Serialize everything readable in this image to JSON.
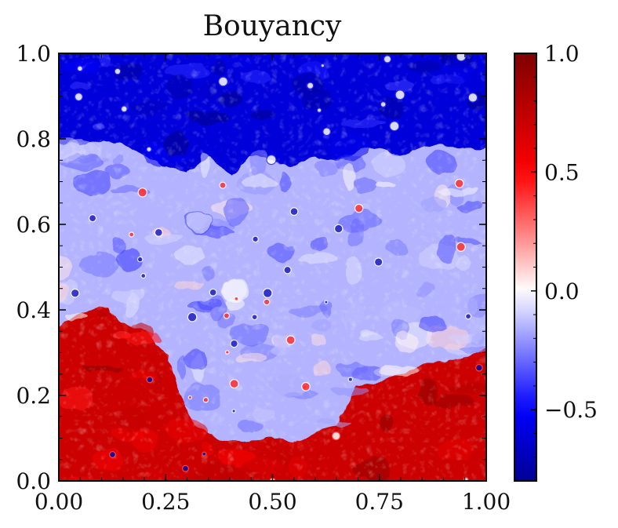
{
  "chart_data": {
    "type": "heatmap",
    "title": "Bouyancy",
    "xlabel": "",
    "ylabel": "",
    "xlim": [
      0.0,
      1.0
    ],
    "ylim": [
      0.0,
      1.0
    ],
    "x_ticks": [
      {
        "value": 0.0,
        "label": "0.00"
      },
      {
        "value": 0.25,
        "label": "0.25"
      },
      {
        "value": 0.5,
        "label": "0.50"
      },
      {
        "value": 0.75,
        "label": "0.75"
      },
      {
        "value": 1.0,
        "label": "1.00"
      }
    ],
    "y_ticks": [
      {
        "value": 0.0,
        "label": "0.0"
      },
      {
        "value": 0.2,
        "label": "0.2"
      },
      {
        "value": 0.4,
        "label": "0.4"
      },
      {
        "value": 0.6,
        "label": "0.6"
      },
      {
        "value": 0.8,
        "label": "0.8"
      },
      {
        "value": 1.0,
        "label": "1.0"
      }
    ],
    "colorbar": {
      "range": [
        -0.8,
        1.0
      ],
      "ticks": [
        {
          "value": 1.0,
          "label": "1.0"
        },
        {
          "value": 0.5,
          "label": "0.5"
        },
        {
          "value": 0.0,
          "label": "0.0"
        },
        {
          "value": -0.5,
          "label": "−0.5"
        }
      ],
      "colormap": "seismic",
      "colors": {
        "low": "#00004c",
        "mid_low": "#0000ff",
        "center": "#ffffff",
        "mid_high": "#ff0000",
        "high": "#7f0000"
      }
    },
    "grid": false,
    "regions": {
      "top_band_value": -0.6,
      "middle_band_value": -0.15,
      "bottom_band_value": 0.7,
      "interface_upper": [
        {
          "x": 0.0,
          "y": 0.79
        },
        {
          "x": 0.05,
          "y": 0.78
        },
        {
          "x": 0.1,
          "y": 0.8
        },
        {
          "x": 0.15,
          "y": 0.79
        },
        {
          "x": 0.2,
          "y": 0.76
        },
        {
          "x": 0.25,
          "y": 0.74
        },
        {
          "x": 0.3,
          "y": 0.72
        },
        {
          "x": 0.35,
          "y": 0.76
        },
        {
          "x": 0.4,
          "y": 0.72
        },
        {
          "x": 0.45,
          "y": 0.76
        },
        {
          "x": 0.5,
          "y": 0.75
        },
        {
          "x": 0.55,
          "y": 0.74
        },
        {
          "x": 0.6,
          "y": 0.76
        },
        {
          "x": 0.65,
          "y": 0.75
        },
        {
          "x": 0.7,
          "y": 0.77
        },
        {
          "x": 0.75,
          "y": 0.78
        },
        {
          "x": 0.8,
          "y": 0.76
        },
        {
          "x": 0.85,
          "y": 0.78
        },
        {
          "x": 0.9,
          "y": 0.79
        },
        {
          "x": 0.95,
          "y": 0.78
        },
        {
          "x": 1.0,
          "y": 0.78
        }
      ],
      "interface_lower": [
        {
          "x": 0.0,
          "y": 0.36
        },
        {
          "x": 0.05,
          "y": 0.39
        },
        {
          "x": 0.1,
          "y": 0.41
        },
        {
          "x": 0.15,
          "y": 0.37
        },
        {
          "x": 0.2,
          "y": 0.35
        },
        {
          "x": 0.25,
          "y": 0.3
        },
        {
          "x": 0.28,
          "y": 0.21
        },
        {
          "x": 0.32,
          "y": 0.13
        },
        {
          "x": 0.38,
          "y": 0.1
        },
        {
          "x": 0.45,
          "y": 0.09
        },
        {
          "x": 0.5,
          "y": 0.1
        },
        {
          "x": 0.55,
          "y": 0.09
        },
        {
          "x": 0.6,
          "y": 0.11
        },
        {
          "x": 0.65,
          "y": 0.13
        },
        {
          "x": 0.7,
          "y": 0.22
        },
        {
          "x": 0.75,
          "y": 0.23
        },
        {
          "x": 0.8,
          "y": 0.25
        },
        {
          "x": 0.85,
          "y": 0.27
        },
        {
          "x": 0.9,
          "y": 0.28
        },
        {
          "x": 0.95,
          "y": 0.29
        },
        {
          "x": 1.0,
          "y": 0.31
        }
      ]
    }
  }
}
